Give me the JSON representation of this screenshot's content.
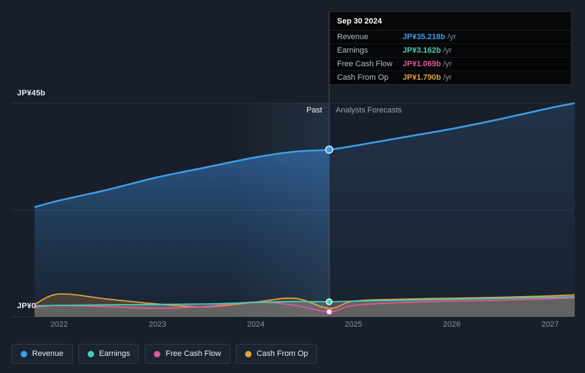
{
  "tooltip": {
    "title": "Sep 30 2024",
    "rows": [
      {
        "label": "Revenue",
        "value": "JP¥35.218b",
        "suffix": "/yr",
        "color": "#3d9ee8"
      },
      {
        "label": "Earnings",
        "value": "JP¥3.162b",
        "suffix": "/yr",
        "color": "#45cfb5"
      },
      {
        "label": "Free Cash Flow",
        "value": "JP¥1.069b",
        "suffix": "/yr",
        "color": "#e0579b"
      },
      {
        "label": "Cash From Op",
        "value": "JP¥1.790b",
        "suffix": "/yr",
        "color": "#e2a33f"
      }
    ]
  },
  "labels": {
    "past": "Past",
    "forecast": "Analysts Forecasts"
  },
  "axis": {
    "y_top_label": "JP¥45b",
    "y_bottom_label": "JP¥0",
    "x_ticks": [
      "2022",
      "2023",
      "2024",
      "2025",
      "2026",
      "2027"
    ]
  },
  "legend": [
    {
      "label": "Revenue",
      "color": "#3d9ee8"
    },
    {
      "label": "Earnings",
      "color": "#45cfb5"
    },
    {
      "label": "Free Cash Flow",
      "color": "#e0579b"
    },
    {
      "label": "Cash From Op",
      "color": "#e2a33f"
    }
  ],
  "chart_data": {
    "type": "line",
    "x": [
      2021.75,
      2022,
      2022.5,
      2023,
      2023.5,
      2024,
      2024.4,
      2024.75,
      2025,
      2025.5,
      2026,
      2026.5,
      2027,
      2027.25
    ],
    "x_ticks": [
      2022,
      2023,
      2024,
      2025,
      2026,
      2027
    ],
    "divider_x": 2024.75,
    "divider_label": "Sep 30 2024",
    "ylim": [
      0,
      45
    ],
    "series": [
      {
        "name": "Revenue",
        "color": "#3d9ee8",
        "values": [
          23.1,
          24.5,
          26.8,
          29.4,
          31.5,
          33.6,
          34.8,
          35.218,
          36.0,
          37.8,
          39.6,
          41.7,
          44.0,
          45.0
        ]
      },
      {
        "name": "Earnings",
        "color": "#45cfb5",
        "values": [
          2.3,
          2.4,
          2.5,
          2.6,
          2.7,
          3.0,
          3.2,
          3.162,
          3.3,
          3.5,
          3.7,
          3.9,
          4.1,
          4.2
        ]
      },
      {
        "name": "Free Cash Flow",
        "color": "#e0579b",
        "values": [
          2.0,
          2.4,
          2.1,
          1.8,
          2.2,
          3.1,
          2.4,
          1.069,
          2.4,
          3.0,
          3.3,
          3.5,
          3.8,
          4.0
        ]
      },
      {
        "name": "Cash From Op",
        "color": "#e2a33f",
        "values": [
          2.6,
          4.8,
          3.7,
          2.7,
          2.1,
          3.1,
          3.9,
          1.79,
          3.3,
          3.7,
          3.9,
          4.1,
          4.4,
          4.6
        ]
      }
    ],
    "markers": {
      "revenue": 35.218,
      "earnings": 3.162,
      "free_cash_flow": 1.069,
      "cash_from_op": 1.79
    }
  }
}
